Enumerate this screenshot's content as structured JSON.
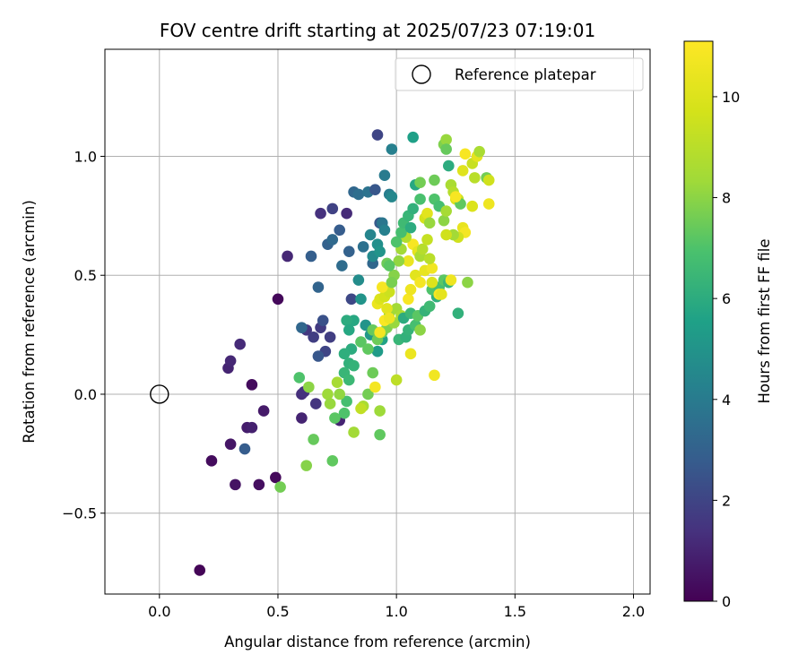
{
  "chart_data": {
    "type": "scatter",
    "title": "FOV centre drift starting at 2025/07/23 07:19:01",
    "xlabel": "Angular distance from reference (arcmin)",
    "ylabel": "Rotation from reference (arcmin)",
    "xlim": [
      -0.23,
      2.07
    ],
    "ylim": [
      -0.84,
      1.45
    ],
    "x_ticks": [
      0.0,
      0.5,
      1.0,
      1.5,
      2.0
    ],
    "x_tick_labels": [
      "0.0",
      "0.5",
      "1.0",
      "1.5",
      "2.0"
    ],
    "y_ticks": [
      -0.5,
      0.0,
      0.5,
      1.0
    ],
    "y_tick_labels": [
      "−0.5",
      "0.0",
      "0.5",
      "1.0"
    ],
    "grid": true,
    "legend": {
      "placement": "top-right",
      "entries": [
        "Reference platepar"
      ]
    },
    "reference_point": {
      "x": 0.0,
      "y": 0.0,
      "label": "Reference platepar"
    },
    "colorbar": {
      "label": "Hours from first FF file",
      "range": [
        0,
        11.1
      ],
      "ticks": [
        0,
        2,
        4,
        6,
        8,
        10
      ],
      "tick_labels": [
        "0",
        "2",
        "4",
        "6",
        "8",
        "10"
      ],
      "colormap": "viridis"
    },
    "series": [
      {
        "points": [
          [
            0.17,
            -0.74,
            0.1
          ],
          [
            0.22,
            -0.28,
            0.3
          ],
          [
            0.3,
            -0.21,
            0.6
          ],
          [
            0.32,
            -0.38,
            0.5
          ],
          [
            0.42,
            -0.38,
            0.4
          ],
          [
            0.49,
            -0.35,
            0.2
          ],
          [
            0.37,
            -0.14,
            0.8
          ],
          [
            0.39,
            -0.14,
            0.9
          ],
          [
            0.44,
            -0.07,
            0.7
          ],
          [
            0.39,
            0.04,
            0.3
          ],
          [
            0.29,
            0.11,
            1.0
          ],
          [
            0.3,
            0.14,
            1.1
          ],
          [
            0.34,
            0.21,
            1.2
          ],
          [
            0.36,
            -0.23,
            2.8
          ],
          [
            0.5,
            0.4,
            0.2
          ],
          [
            0.54,
            0.58,
            1.1
          ],
          [
            0.6,
            -0.1,
            1.0
          ],
          [
            0.6,
            0.0,
            1.3
          ],
          [
            0.61,
            0.01,
            1.4
          ],
          [
            0.62,
            0.27,
            1.6
          ],
          [
            0.65,
            0.24,
            1.8
          ],
          [
            0.66,
            -0.04,
            1.5
          ],
          [
            0.68,
            0.76,
            1.4
          ],
          [
            0.68,
            0.28,
            1.7
          ],
          [
            0.7,
            0.18,
            2.0
          ],
          [
            0.72,
            0.24,
            1.8
          ],
          [
            0.73,
            0.78,
            1.9
          ],
          [
            0.76,
            -0.11,
            1.0
          ],
          [
            0.79,
            0.76,
            1.2
          ],
          [
            0.67,
            0.16,
            2.6
          ],
          [
            0.64,
            0.58,
            2.9
          ],
          [
            0.67,
            0.45,
            3.1
          ],
          [
            0.6,
            0.28,
            3.2
          ],
          [
            0.69,
            0.31,
            2.4
          ],
          [
            0.71,
            0.63,
            3.0
          ],
          [
            0.73,
            0.65,
            3.3
          ],
          [
            0.76,
            0.69,
            2.8
          ],
          [
            0.77,
            0.54,
            3.4
          ],
          [
            0.8,
            0.6,
            3.0
          ],
          [
            0.81,
            0.4,
            2.1
          ],
          [
            0.82,
            0.85,
            3.2
          ],
          [
            0.84,
            0.84,
            3.5
          ],
          [
            0.86,
            0.62,
            3.6
          ],
          [
            0.88,
            0.85,
            3.7
          ],
          [
            0.9,
            0.55,
            3.2
          ],
          [
            0.91,
            0.86,
            2.6
          ],
          [
            0.92,
            1.09,
            2.0
          ],
          [
            0.93,
            0.72,
            2.7
          ],
          [
            0.94,
            0.72,
            3.8
          ],
          [
            0.95,
            0.69,
            4.2
          ],
          [
            0.95,
            0.92,
            4.0
          ],
          [
            0.97,
            0.84,
            4.1
          ],
          [
            0.98,
            1.03,
            4.2
          ],
          [
            0.98,
            0.83,
            4.5
          ],
          [
            0.89,
            0.67,
            4.4
          ],
          [
            0.9,
            0.58,
            4.6
          ],
          [
            0.92,
            0.63,
            4.8
          ],
          [
            0.93,
            0.6,
            5.0
          ],
          [
            0.84,
            0.48,
            4.7
          ],
          [
            0.85,
            0.4,
            5.0
          ],
          [
            0.87,
            0.29,
            5.0
          ],
          [
            0.89,
            0.25,
            5.2
          ],
          [
            0.92,
            0.18,
            5.3
          ],
          [
            0.94,
            0.23,
            5.6
          ],
          [
            0.82,
            0.31,
            5.8
          ],
          [
            0.79,
            0.31,
            6.0
          ],
          [
            0.8,
            0.27,
            5.8
          ],
          [
            0.81,
            0.19,
            6.0
          ],
          [
            0.78,
            0.17,
            6.1
          ],
          [
            0.8,
            0.13,
            6.2
          ],
          [
            0.82,
            0.12,
            6.3
          ],
          [
            0.78,
            0.09,
            6.4
          ],
          [
            0.8,
            0.06,
            6.5
          ],
          [
            0.79,
            -0.03,
            6.8
          ],
          [
            0.78,
            -0.08,
            7.0
          ],
          [
            0.74,
            -0.1,
            7.2
          ],
          [
            0.73,
            -0.28,
            7.3
          ],
          [
            0.65,
            -0.19,
            7.4
          ],
          [
            0.62,
            -0.3,
            7.9
          ],
          [
            0.51,
            -0.39,
            7.6
          ],
          [
            0.59,
            0.07,
            7.0
          ],
          [
            0.63,
            0.03,
            8.0
          ],
          [
            0.71,
            0.0,
            8.3
          ],
          [
            0.72,
            -0.04,
            8.2
          ],
          [
            0.75,
            0.05,
            8.5
          ],
          [
            0.76,
            0.0,
            8.1
          ],
          [
            0.82,
            -0.16,
            8.4
          ],
          [
            0.86,
            -0.05,
            8.6
          ],
          [
            0.85,
            -0.06,
            9.2
          ],
          [
            0.88,
            0.0,
            7.6
          ],
          [
            0.93,
            -0.07,
            8.3
          ],
          [
            0.93,
            -0.17,
            7.3
          ],
          [
            0.9,
            0.09,
            7.5
          ],
          [
            0.91,
            0.03,
            10.8
          ],
          [
            1.0,
            0.06,
            9.1
          ],
          [
            1.06,
            0.17,
            10.5
          ],
          [
            1.16,
            0.08,
            10.7
          ],
          [
            0.85,
            0.22,
            7.2
          ],
          [
            0.88,
            0.19,
            7.3
          ],
          [
            0.9,
            0.27,
            7.4
          ],
          [
            0.92,
            0.23,
            7.5
          ],
          [
            0.94,
            0.26,
            7.6
          ],
          [
            0.96,
            0.28,
            7.8
          ],
          [
            0.97,
            0.34,
            8.0
          ],
          [
            0.99,
            0.3,
            8.2
          ],
          [
            1.0,
            0.36,
            8.4
          ],
          [
            1.02,
            0.33,
            8.6
          ],
          [
            1.01,
            0.23,
            6.4
          ],
          [
            1.04,
            0.24,
            6.2
          ],
          [
            1.03,
            0.32,
            6.0
          ],
          [
            1.05,
            0.27,
            6.3
          ],
          [
            1.06,
            0.34,
            6.5
          ],
          [
            1.08,
            0.29,
            6.8
          ],
          [
            1.09,
            0.33,
            7.2
          ],
          [
            1.1,
            0.27,
            8.0
          ],
          [
            1.12,
            0.35,
            6.3
          ],
          [
            1.14,
            0.37,
            6.6
          ],
          [
            1.17,
            0.41,
            6.1
          ],
          [
            1.15,
            0.44,
            7.0
          ],
          [
            1.18,
            0.45,
            6.8
          ],
          [
            1.2,
            0.48,
            7.2
          ],
          [
            1.22,
            0.47,
            6.4
          ],
          [
            1.26,
            0.34,
            6.2
          ],
          [
            1.3,
            0.47,
            8.0
          ],
          [
            0.92,
            0.38,
            10.5
          ],
          [
            0.93,
            0.4,
            10.0
          ],
          [
            0.95,
            0.41,
            9.7
          ],
          [
            0.96,
            0.36,
            10.2
          ],
          [
            0.97,
            0.43,
            9.5
          ],
          [
            0.94,
            0.45,
            10.9
          ],
          [
            0.95,
            0.31,
            11.0
          ],
          [
            0.93,
            0.26,
            10.8
          ],
          [
            0.97,
            0.32,
            10.6
          ],
          [
            1.05,
            0.4,
            10.9
          ],
          [
            1.06,
            0.44,
            10.6
          ],
          [
            1.08,
            0.5,
            10.2
          ],
          [
            1.1,
            0.47,
            10.8
          ],
          [
            1.12,
            0.52,
            10.4
          ],
          [
            1.15,
            0.53,
            10.7
          ],
          [
            1.18,
            0.42,
            10.9
          ],
          [
            1.05,
            0.56,
            10.5
          ],
          [
            1.07,
            0.63,
            10.9
          ],
          [
            1.09,
            0.6,
            10.3
          ],
          [
            1.1,
            0.58,
            8.6
          ],
          [
            1.11,
            0.61,
            8.9
          ],
          [
            1.13,
            0.65,
            9.3
          ],
          [
            1.14,
            0.57,
            9.0
          ],
          [
            1.04,
            0.66,
            8.8
          ],
          [
            1.02,
            0.61,
            8.4
          ],
          [
            1.01,
            0.56,
            8.1
          ],
          [
            0.99,
            0.5,
            7.9
          ],
          [
            0.98,
            0.47,
            7.7
          ],
          [
            0.96,
            0.55,
            7.5
          ],
          [
            0.97,
            0.54,
            7.2
          ],
          [
            1.0,
            0.64,
            7.0
          ],
          [
            1.02,
            0.68,
            6.8
          ],
          [
            1.03,
            0.72,
            6.6
          ],
          [
            1.05,
            0.75,
            6.4
          ],
          [
            1.07,
            0.78,
            6.2
          ],
          [
            1.06,
            0.7,
            6.0
          ],
          [
            1.08,
            0.88,
            5.8
          ],
          [
            1.07,
            1.08,
            5.5
          ],
          [
            1.1,
            0.89,
            7.6
          ],
          [
            1.1,
            0.82,
            6.9
          ],
          [
            1.12,
            0.74,
            9.7
          ],
          [
            1.13,
            0.76,
            10.2
          ],
          [
            1.14,
            0.72,
            8.2
          ],
          [
            1.16,
            0.82,
            7.0
          ],
          [
            1.16,
            0.9,
            7.5
          ],
          [
            1.18,
            0.79,
            6.8
          ],
          [
            1.2,
            0.73,
            8.0
          ],
          [
            1.21,
            0.77,
            8.5
          ],
          [
            1.2,
            1.05,
            7.8
          ],
          [
            1.21,
            1.07,
            8.2
          ],
          [
            1.21,
            1.03,
            7.4
          ],
          [
            1.22,
            0.96,
            6.0
          ],
          [
            1.23,
            0.88,
            8.6
          ],
          [
            1.25,
            0.82,
            10.0
          ],
          [
            1.24,
            0.85,
            8.9
          ],
          [
            1.26,
            0.82,
            9.3
          ],
          [
            1.27,
            0.8,
            7.3
          ],
          [
            1.28,
            0.7,
            10.4
          ],
          [
            1.29,
            0.68,
            10.8
          ],
          [
            1.26,
            0.66,
            9.6
          ],
          [
            1.24,
            0.67,
            8.4
          ],
          [
            1.28,
            0.94,
            10.1
          ],
          [
            1.29,
            1.01,
            10.9
          ],
          [
            1.32,
            0.97,
            9.4
          ],
          [
            1.34,
            1.0,
            10.3
          ],
          [
            1.35,
            1.02,
            8.6
          ],
          [
            1.33,
            0.91,
            9.0
          ],
          [
            1.38,
            0.91,
            7.6
          ],
          [
            1.39,
            0.9,
            9.6
          ],
          [
            1.39,
            0.8,
            10.6
          ],
          [
            1.32,
            0.79,
            10.0
          ],
          [
            1.25,
            0.83,
            10.9
          ],
          [
            1.23,
            0.48,
            10.6
          ],
          [
            1.19,
            0.42,
            10.3
          ],
          [
            1.15,
            0.47,
            10.0
          ],
          [
            1.21,
            0.67,
            9.6
          ]
        ]
      }
    ]
  }
}
